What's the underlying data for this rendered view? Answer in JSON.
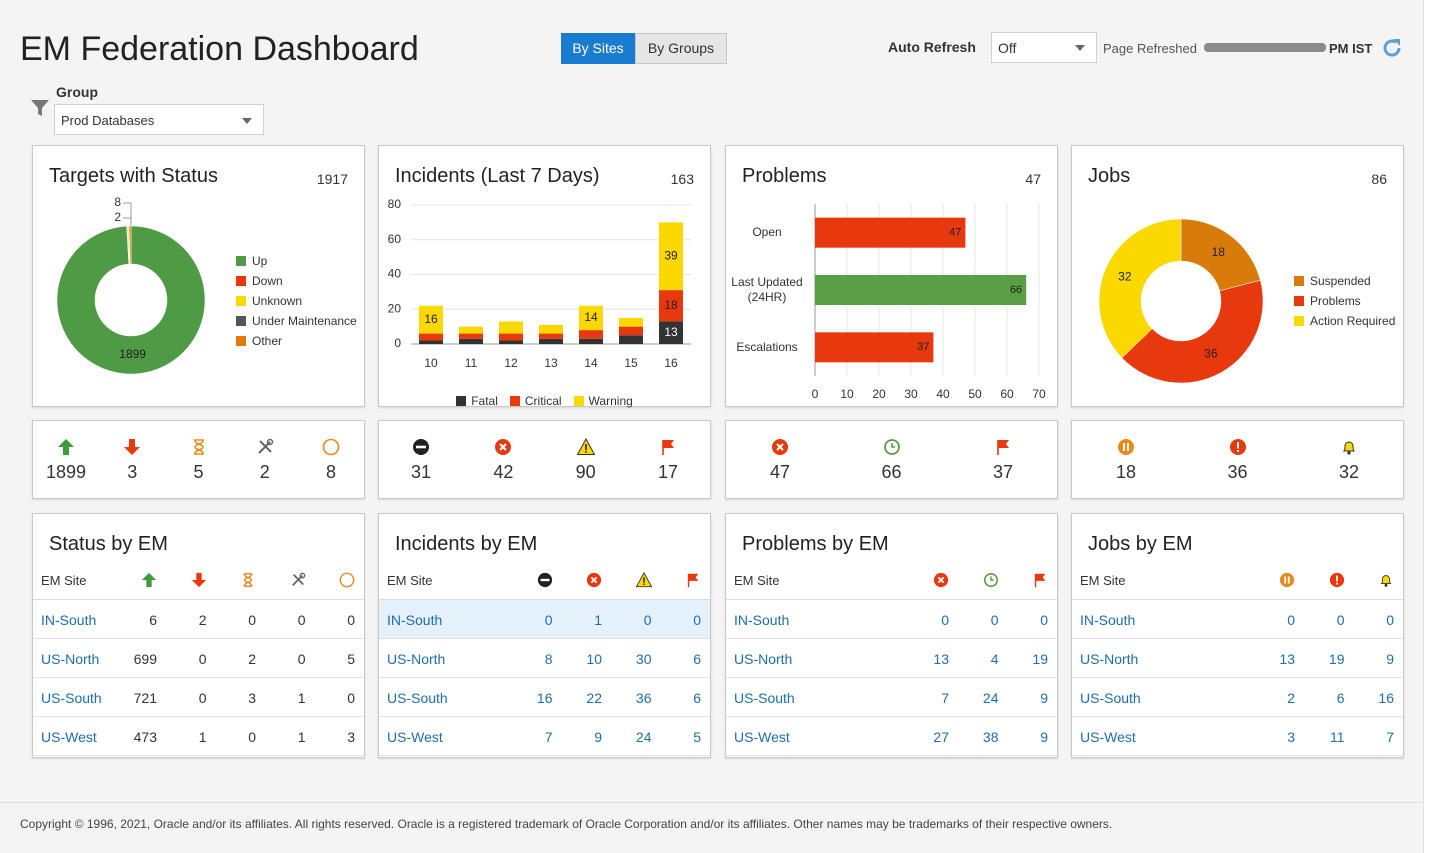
{
  "header": {
    "title": "EM Federation Dashboard",
    "tabs": [
      "By Sites",
      "By Groups"
    ],
    "auto_refresh_label": "Auto Refresh",
    "auto_refresh_value": "Off",
    "page_refreshed_label": "Page Refreshed",
    "page_refreshed_suffix": "PM IST"
  },
  "filter": {
    "label": "Group",
    "value": "Prod Databases"
  },
  "chart_data": [
    {
      "type": "donut",
      "title": "Targets with Status",
      "total": 1917,
      "categories": [
        "Up",
        "Down",
        "Unknown",
        "Under Maintenance",
        "Other"
      ],
      "values": [
        1899,
        3,
        5,
        2,
        8
      ],
      "value_labels": [
        "1899",
        null,
        null,
        "2",
        "8"
      ],
      "colors": [
        "#4f9a45",
        "#e8380d",
        "#fad800",
        "#555555",
        "#e07b0b"
      ]
    },
    {
      "type": "stacked-bar",
      "title": "Incidents (Last 7 Days)",
      "total": 163,
      "categories": [
        "10",
        "11",
        "12",
        "13",
        "14",
        "15",
        "16"
      ],
      "series": [
        {
          "name": "Fatal",
          "color": "#333333",
          "values": [
            2,
            3,
            2,
            3,
            3,
            5,
            13
          ],
          "value_labels": [
            null,
            null,
            null,
            null,
            null,
            null,
            "13"
          ]
        },
        {
          "name": "Critical",
          "color": "#e8380d",
          "values": [
            4,
            3,
            4,
            3,
            5,
            5,
            18
          ],
          "value_labels": [
            null,
            null,
            null,
            null,
            null,
            null,
            "18"
          ]
        },
        {
          "name": "Warning",
          "color": "#fad800",
          "values": [
            16,
            4,
            7,
            5,
            14,
            5,
            39
          ],
          "value_labels": [
            "16",
            null,
            null,
            null,
            "14",
            null,
            "39"
          ]
        }
      ],
      "ylim": [
        0,
        80
      ],
      "yticks": [
        0,
        20,
        40,
        60,
        80
      ],
      "grid": true
    },
    {
      "type": "hbar",
      "title": "Problems",
      "total": 47,
      "categories": [
        "Open",
        "Last Updated (24HR)",
        "Escalations"
      ],
      "values": [
        47,
        66,
        37
      ],
      "colors": [
        "#e8380d",
        "#5a9e45",
        "#e8380d"
      ],
      "xlim": [
        0,
        70
      ],
      "xticks": [
        0,
        10,
        20,
        30,
        40,
        50,
        60,
        70
      ],
      "grid": true
    },
    {
      "type": "donut",
      "title": "Jobs",
      "total": 86,
      "categories": [
        "Suspended",
        "Problems",
        "Action Required"
      ],
      "values": [
        18,
        36,
        32
      ],
      "colors": [
        "#d97b0b",
        "#e8380d",
        "#fad800"
      ]
    }
  ],
  "summary_tiles": [
    [
      1899,
      3,
      5,
      2,
      8
    ],
    [
      31,
      42,
      90,
      17
    ],
    [
      47,
      66,
      37
    ],
    [
      18,
      36,
      32
    ]
  ],
  "tables": [
    {
      "title": "Status by EM",
      "column_header": "EM Site",
      "rows": [
        [
          "IN-South",
          6,
          2,
          0,
          0,
          0
        ],
        [
          "US-North",
          699,
          0,
          2,
          0,
          5
        ],
        [
          "US-South",
          721,
          0,
          3,
          1,
          0
        ],
        [
          "US-West",
          473,
          1,
          0,
          1,
          3
        ]
      ]
    },
    {
      "title": "Incidents by EM",
      "column_header": "EM Site",
      "rows": [
        [
          "IN-South",
          0,
          1,
          0,
          0
        ],
        [
          "US-North",
          8,
          10,
          30,
          6
        ],
        [
          "US-South",
          16,
          22,
          36,
          6
        ],
        [
          "US-West",
          7,
          9,
          24,
          5
        ]
      ]
    },
    {
      "title": "Problems by EM",
      "column_header": "EM Site",
      "rows": [
        [
          "IN-South",
          0,
          0,
          0
        ],
        [
          "US-North",
          13,
          4,
          19
        ],
        [
          "US-South",
          7,
          24,
          9
        ],
        [
          "US-West",
          27,
          38,
          9
        ]
      ]
    },
    {
      "title": "Jobs by EM",
      "column_header": "EM Site",
      "rows": [
        [
          "IN-South",
          0,
          0,
          0
        ],
        [
          "US-North",
          13,
          19,
          9
        ],
        [
          "US-South",
          2,
          6,
          16
        ],
        [
          "US-West",
          3,
          11,
          7
        ]
      ]
    }
  ],
  "footer": "Copyright © 1996, 2021, Oracle and/or its affiliates. All rights reserved. Oracle is a registered trademark of Oracle Corporation and/or its affiliates. Other names may be trademarks of their respective owners."
}
